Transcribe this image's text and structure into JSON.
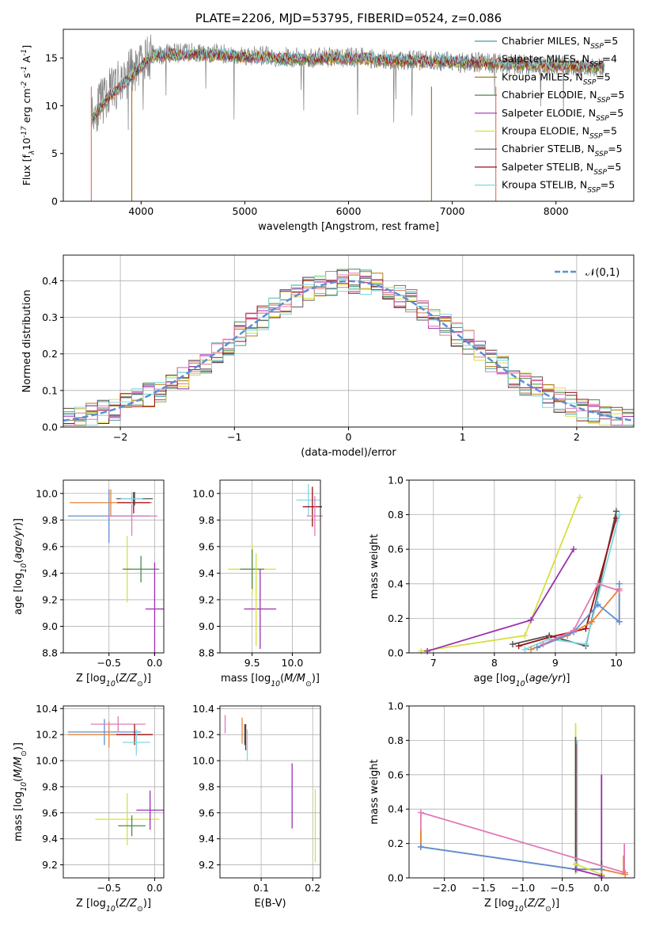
{
  "chart_data": [
    {
      "type": "line",
      "title": "PLATE=2206, MJD=53795, FIBERID=0524, z=0.086",
      "xlabel": "wavelength [Angstrom, rest frame]",
      "ylabel": "Flux [f$_\\lambda$10$^{-17}$ erg cm$^{-2}$ s$^{-1}$ A$^{-1}$]",
      "xlim": [
        3250,
        8750
      ],
      "ylim": [
        0,
        18
      ],
      "xticks": [
        4000,
        5000,
        6000,
        7000,
        8000
      ],
      "yticks": [
        0,
        5,
        10,
        15
      ],
      "grid": false,
      "legend_position": "right",
      "series": [
        {
          "name": "Chabrier MILES, N$_{SSP}$=5",
          "color": "#4c9a9a"
        },
        {
          "name": "Salpeter MILES, N$_{SSP}$=4",
          "color": "#e07b6a"
        },
        {
          "name": "Kroupa MILES, N$_{SSP}$=5",
          "color": "#b07a10"
        },
        {
          "name": "Chabrier ELODIE, N$_{SSP}$=5",
          "color": "#4a8a4a"
        },
        {
          "name": "Salpeter ELODIE, N$_{SSP}$=5",
          "color": "#9b30b0"
        },
        {
          "name": "Kroupa ELODIE, N$_{SSP}$=5",
          "color": "#d6e040"
        },
        {
          "name": "Chabrier STELIB, N$_{SSP}$=5",
          "color": "#555555"
        },
        {
          "name": "Salpeter STELIB, N$_{SSP}$=5",
          "color": "#9b1010"
        },
        {
          "name": "Kroupa STELIB, N$_{SSP}$=5",
          "color": "#7fd8e0"
        }
      ],
      "data_flux": {
        "color": "#808080",
        "x_range": [
          3520,
          8470
        ],
        "continuum": [
          [
            3520,
            9.0
          ],
          [
            3700,
            11.5
          ],
          [
            3900,
            13.5
          ],
          [
            4100,
            15.3
          ],
          [
            4500,
            15.6
          ],
          [
            5000,
            15.3
          ],
          [
            5500,
            15.0
          ],
          [
            6000,
            15.1
          ],
          [
            6500,
            14.8
          ],
          [
            7000,
            14.6
          ],
          [
            7500,
            14.4
          ],
          [
            8000,
            14.2
          ],
          [
            8470,
            14.0
          ]
        ]
      },
      "model_continuum": [
        [
          3520,
          8.5
        ],
        [
          3700,
          11.0
        ],
        [
          3900,
          13.0
        ],
        [
          4100,
          15.2
        ],
        [
          4500,
          15.4
        ],
        [
          5000,
          15.1
        ],
        [
          5500,
          14.9
        ],
        [
          6000,
          15.0
        ],
        [
          6500,
          14.7
        ],
        [
          7000,
          14.6
        ],
        [
          7500,
          14.4
        ],
        [
          8000,
          14.2
        ],
        [
          8470,
          14.0
        ]
      ]
    },
    {
      "type": "line",
      "xlabel": "(data-model)/error",
      "ylabel": "Normed distribution",
      "xlim": [
        -2.5,
        2.5
      ],
      "ylim": [
        0,
        0.47
      ],
      "xticks": [
        -2,
        -1,
        0,
        1,
        2
      ],
      "yticks": [
        0.0,
        0.1,
        0.2,
        0.3,
        0.4
      ],
      "grid": true,
      "legend_position": "top-right",
      "legend": [
        "$\\mathcal{N}(0,1)$"
      ],
      "reference_curve": {
        "name": "$\\mathcal{N}(0,1)$",
        "mean": 0,
        "sigma": 1,
        "style": "dashed",
        "color": "#5b8fd6"
      },
      "hist_bin_width": 0.1,
      "hist_colors": [
        "#4c9a9a",
        "#e07b6a",
        "#b07a10",
        "#4a8a4a",
        "#9b30b0",
        "#d6e040",
        "#555555",
        "#9b1010",
        "#7fd8e0",
        "#e07ab8"
      ]
    },
    {
      "type": "scatter",
      "xlabel": "Z [log$_{10}$($Z/Z_\\odot$)]",
      "ylabel": "age  [log$_{10}$($age/yr$)]",
      "xlim": [
        -1.0,
        0.1
      ],
      "ylim": [
        8.8,
        10.1
      ],
      "xticks": [
        -0.5,
        0.0
      ],
      "yticks": [
        8.8,
        9.0,
        9.2,
        9.4,
        9.6,
        9.8,
        10.0
      ],
      "grid": true,
      "points": [
        {
          "x": -0.5,
          "y": 9.83,
          "xerr": 0.45,
          "yerr": 0.2,
          "color": "#5b8fd6"
        },
        {
          "x": -0.48,
          "y": 9.93,
          "xerr": 0.45,
          "yerr": 0.1,
          "color": "#e8843a"
        },
        {
          "x": -0.25,
          "y": 9.83,
          "xerr": 0.28,
          "yerr": 0.15,
          "color": "#e07ab8"
        },
        {
          "x": -0.23,
          "y": 9.93,
          "xerr": 0.18,
          "yerr": 0.08,
          "color": "#9b1010"
        },
        {
          "x": -0.22,
          "y": 9.96,
          "xerr": 0.2,
          "yerr": 0.05,
          "color": "#555555"
        },
        {
          "x": -0.25,
          "y": 9.96,
          "xerr": 0.12,
          "yerr": 0.05,
          "color": "#7fd8e0"
        },
        {
          "x": -0.3,
          "y": 9.43,
          "xerr": 0.05,
          "yerr": 0.25,
          "color": "#d6e040"
        },
        {
          "x": -0.15,
          "y": 9.43,
          "xerr": 0.2,
          "yerr": 0.1,
          "color": "#4a8a4a"
        },
        {
          "x": 0.0,
          "y": 9.13,
          "xerr": 0.1,
          "yerr": 0.35,
          "color": "#9b30b0"
        }
      ]
    },
    {
      "type": "scatter",
      "xlabel": "mass [log$_{10}$($M/M_\\odot$)]",
      "ylabel": "",
      "xlim": [
        9.1,
        10.35
      ],
      "ylim": [
        8.8,
        10.1
      ],
      "xticks": [
        9.5,
        10.0
      ],
      "yticks": [
        8.8,
        9.0,
        9.2,
        9.4,
        9.6,
        9.8,
        10.0
      ],
      "grid": true,
      "points": [
        {
          "x": 10.2,
          "y": 9.95,
          "xerr": 0.15,
          "yerr": 0.12,
          "color": "#7fd8e0"
        },
        {
          "x": 10.25,
          "y": 9.9,
          "xerr": 0.12,
          "yerr": 0.15,
          "color": "#9b1010"
        },
        {
          "x": 10.28,
          "y": 9.83,
          "xerr": 0.1,
          "yerr": 0.15,
          "color": "#e07ab8"
        },
        {
          "x": 9.5,
          "y": 9.43,
          "xerr": 0.3,
          "yerr": 0.2,
          "color": "#d6e040"
        },
        {
          "x": 9.5,
          "y": 9.43,
          "xerr": 0.15,
          "yerr": 0.15,
          "color": "#4a8a4a"
        },
        {
          "x": 9.6,
          "y": 9.13,
          "xerr": 0.2,
          "yerr": 0.3,
          "color": "#9b30b0"
        },
        {
          "x": 9.55,
          "y": 9.2,
          "xerr": 0.02,
          "yerr": 0.35,
          "color": "#d6e040"
        }
      ]
    },
    {
      "type": "line",
      "xlabel": "age  [log$_{10}$($age/yr$)]",
      "ylabel": "mass weight",
      "xlim": [
        6.6,
        10.3
      ],
      "ylim": [
        0,
        1.0
      ],
      "xticks": [
        7,
        8,
        9,
        10
      ],
      "yticks": [
        0.0,
        0.2,
        0.4,
        0.6,
        0.8,
        1.0
      ],
      "grid": true,
      "series": [
        {
          "color": "#d6e040",
          "points": [
            [
              6.8,
              0.01
            ],
            [
              8.5,
              0.1
            ],
            [
              9.4,
              0.9
            ]
          ]
        },
        {
          "color": "#9b30b0",
          "points": [
            [
              6.9,
              0.01
            ],
            [
              8.6,
              0.19
            ],
            [
              9.3,
              0.6
            ]
          ]
        },
        {
          "color": "#555555",
          "points": [
            [
              8.3,
              0.05
            ],
            [
              8.9,
              0.1
            ],
            [
              9.5,
              0.04
            ],
            [
              10.0,
              0.82
            ]
          ]
        },
        {
          "color": "#9b1010",
          "points": [
            [
              8.4,
              0.04
            ],
            [
              8.9,
              0.09
            ],
            [
              9.5,
              0.14
            ],
            [
              10.0,
              0.78
            ]
          ]
        },
        {
          "color": "#7fd8e0",
          "points": [
            [
              8.5,
              0.02
            ],
            [
              8.9,
              0.08
            ],
            [
              9.5,
              0.05
            ],
            [
              10.05,
              0.8
            ]
          ]
        },
        {
          "color": "#e8843a",
          "points": [
            [
              8.6,
              0.02
            ],
            [
              9.2,
              0.1
            ],
            [
              9.6,
              0.18
            ],
            [
              10.05,
              0.37
            ],
            [
              10.05,
              0.18
            ]
          ]
        },
        {
          "color": "#5b8fd6",
          "points": [
            [
              8.7,
              0.03
            ],
            [
              9.3,
              0.12
            ],
            [
              9.7,
              0.28
            ],
            [
              10.05,
              0.18
            ],
            [
              10.05,
              0.4
            ]
          ]
        },
        {
          "color": "#e07ab8",
          "points": [
            [
              8.8,
              0.05
            ],
            [
              9.3,
              0.13
            ],
            [
              9.7,
              0.4
            ],
            [
              10.05,
              0.36
            ]
          ]
        }
      ]
    },
    {
      "type": "scatter",
      "xlabel": "Z [log$_{10}$($Z/Z_\\odot$)]",
      "ylabel": "mass [log$_{10}$($M/M_\\odot$)]",
      "xlim": [
        -1.0,
        0.1
      ],
      "ylim": [
        9.1,
        10.42
      ],
      "xticks": [
        -0.5,
        0.0
      ],
      "yticks": [
        9.2,
        9.4,
        9.6,
        9.8,
        10.0,
        10.2,
        10.4
      ],
      "grid": true,
      "points": [
        {
          "x": -0.55,
          "y": 10.22,
          "xerr": 0.4,
          "yerr": 0.1,
          "color": "#5b8fd6"
        },
        {
          "x": -0.5,
          "y": 10.2,
          "xerr": 0.45,
          "yerr": 0.1,
          "color": "#e8843a"
        },
        {
          "x": -0.4,
          "y": 10.28,
          "xerr": 0.3,
          "yerr": 0.06,
          "color": "#e07ab8"
        },
        {
          "x": -0.22,
          "y": 10.2,
          "xerr": 0.2,
          "yerr": 0.08,
          "color": "#9b1010"
        },
        {
          "x": -0.2,
          "y": 10.14,
          "xerr": 0.15,
          "yerr": 0.1,
          "color": "#7fd8e0"
        },
        {
          "x": -0.3,
          "y": 9.55,
          "xerr": 0.35,
          "yerr": 0.2,
          "color": "#d6e040"
        },
        {
          "x": -0.05,
          "y": 9.62,
          "xerr": 0.15,
          "yerr": 0.15,
          "color": "#9b30b0"
        },
        {
          "x": -0.25,
          "y": 9.5,
          "xerr": 0.15,
          "yerr": 0.08,
          "color": "#4a8a4a"
        }
      ]
    },
    {
      "type": "scatter",
      "xlabel": "E(B-V)",
      "ylabel": "",
      "xlim": [
        0.02,
        0.215
      ],
      "ylim": [
        9.1,
        10.42
      ],
      "xticks": [
        0.1,
        0.2
      ],
      "yticks": [
        9.2,
        9.4,
        9.6,
        9.8,
        10.0,
        10.2,
        10.4
      ],
      "grid": true,
      "points": [
        {
          "x": 0.03,
          "y": 10.28,
          "yerr": 0.07,
          "color": "#e07ab8"
        },
        {
          "x": 0.063,
          "y": 10.23,
          "yerr": 0.1,
          "color": "#e8843a"
        },
        {
          "x": 0.068,
          "y": 10.2,
          "yerr": 0.08,
          "color": "#555555"
        },
        {
          "x": 0.07,
          "y": 10.18,
          "yerr": 0.1,
          "color": "#9b1010"
        },
        {
          "x": 0.073,
          "y": 10.12,
          "yerr": 0.12,
          "color": "#7fd8e0"
        },
        {
          "x": 0.16,
          "y": 9.73,
          "yerr": 0.25,
          "color": "#9b30b0"
        },
        {
          "x": 0.205,
          "y": 9.5,
          "yerr": 0.28,
          "color": "#d6e040"
        }
      ]
    },
    {
      "type": "line",
      "xlabel": "Z [log$_{10}$($Z/Z_\\odot$)]",
      "ylabel": "mass weight",
      "xlim": [
        -2.45,
        0.42
      ],
      "ylim": [
        0,
        1.0
      ],
      "xticks": [
        -2.0,
        -1.5,
        -1.0,
        -0.5,
        0.0
      ],
      "yticks": [
        0.0,
        0.2,
        0.4,
        0.6,
        0.8,
        1.0
      ],
      "grid": true,
      "series": [
        {
          "color": "#e07ab8",
          "points": [
            [
              -2.3,
              0.38
            ],
            [
              0.3,
              0.03
            ]
          ]
        },
        {
          "color": "#e8843a",
          "points": [
            [
              -2.3,
              0.18
            ],
            [
              -0.33,
              0.05
            ],
            [
              0.0,
              0.05
            ],
            [
              0.3,
              0.02
            ]
          ]
        },
        {
          "color": "#5b8fd6",
          "points": [
            [
              -2.3,
              0.18
            ],
            [
              -0.33,
              0.05
            ],
            [
              0.0,
              0.05
            ]
          ]
        },
        {
          "color": "#d6e040",
          "points": [
            [
              -0.33,
              0.08
            ],
            [
              0.0,
              0.02
            ]
          ]
        },
        {
          "color": "#9b30b0",
          "points": [
            [
              -0.33,
              0.05
            ],
            [
              0.0,
              0.01
            ]
          ]
        }
      ],
      "stems": [
        {
          "x": -2.3,
          "lo": 0.18,
          "hi": 0.38,
          "color": "#e07ab8"
        },
        {
          "x": -2.3,
          "lo": 0.18,
          "hi": 0.28,
          "color": "#e8843a"
        },
        {
          "x": -0.33,
          "lo": 0.02,
          "hi": 0.9,
          "color": "#d6e040"
        },
        {
          "x": -0.33,
          "lo": 0.05,
          "hi": 0.82,
          "color": "#555555"
        },
        {
          "x": -0.32,
          "lo": 0.05,
          "hi": 0.78,
          "color": "#9b1010"
        },
        {
          "x": -0.31,
          "lo": 0.03,
          "hi": 0.8,
          "color": "#7fd8e0"
        },
        {
          "x": 0.0,
          "lo": 0.0,
          "hi": 0.6,
          "color": "#9b30b0"
        },
        {
          "x": 0.0,
          "lo": 0.0,
          "hi": 0.1,
          "color": "#555555"
        },
        {
          "x": 0.29,
          "lo": 0.02,
          "hi": 0.2,
          "color": "#e07ab8"
        },
        {
          "x": 0.28,
          "lo": 0.02,
          "hi": 0.13,
          "color": "#e8843a"
        }
      ]
    }
  ]
}
